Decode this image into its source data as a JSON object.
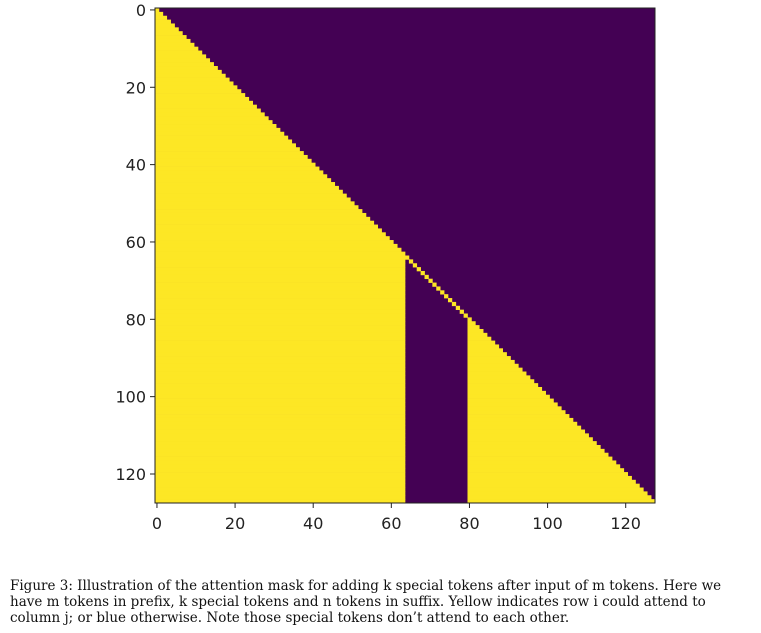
{
  "chart_data": {
    "type": "heatmap",
    "description_rows": "query token i",
    "description_cols": "key token j",
    "size": 128,
    "segments": {
      "prefix_tokens_m": 64,
      "special_tokens_k": 16,
      "suffix_tokens_n": 48
    },
    "colors": {
      "attend": "#fde725",
      "masked": "#440154"
    },
    "x_ticks": [
      "0",
      "20",
      "40",
      "60",
      "80",
      "100",
      "120"
    ],
    "y_ticks": [
      "0",
      "20",
      "40",
      "60",
      "80",
      "100",
      "120"
    ],
    "x_tick_values": [
      0,
      20,
      40,
      60,
      80,
      100,
      120
    ],
    "y_tick_values": [
      0,
      20,
      40,
      60,
      80,
      100,
      120
    ],
    "xlim": [
      -0.5,
      127.5
    ],
    "ylim": [
      127.5,
      -0.5
    ]
  },
  "caption": "Figure 3: Illustration of the attention mask for adding k special tokens after input of m tokens. Here we have m tokens in prefix, k special tokens and n tokens in suffix. Yellow indicates row i could attend to column j; or blue otherwise. Note those special tokens don’t attend to each other."
}
